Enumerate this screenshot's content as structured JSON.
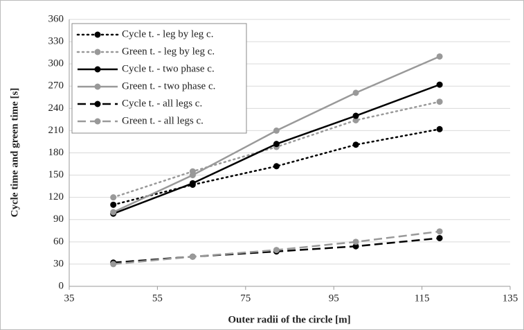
{
  "chart_data": {
    "type": "line",
    "xlabel": "Outer radii of the circle [m]",
    "ylabel": "Cycle time  and green time  [s]",
    "x": [
      45,
      63,
      82,
      100,
      119
    ],
    "xlim": [
      35,
      135
    ],
    "xticks": [
      35,
      55,
      75,
      95,
      115,
      135
    ],
    "ylim": [
      0,
      360
    ],
    "yticks": [
      0,
      30,
      60,
      90,
      120,
      150,
      180,
      210,
      240,
      270,
      300,
      330,
      360
    ],
    "grid": true,
    "legend": "upper left",
    "series": [
      {
        "name": "Cycle t. - leg by leg c.",
        "color": "#000000",
        "dash": "dotted",
        "values": [
          110,
          137,
          162,
          191,
          212
        ]
      },
      {
        "name": "Green t. - leg by leg c.",
        "color": "#999999",
        "dash": "dotted",
        "values": [
          120,
          155,
          188,
          224,
          249
        ]
      },
      {
        "name": "Cycle t. - two phase c.",
        "color": "#000000",
        "dash": "solid",
        "values": [
          98,
          139,
          192,
          230,
          272
        ]
      },
      {
        "name": "Green t. - two phase c.",
        "color": "#999999",
        "dash": "solid",
        "values": [
          100,
          150,
          210,
          261,
          310
        ]
      },
      {
        "name": "Cycle t. - all legs c.",
        "color": "#000000",
        "dash": "dashed",
        "values": [
          32,
          40,
          47,
          54,
          65
        ]
      },
      {
        "name": "Green t. - all legs c.",
        "color": "#999999",
        "dash": "dashed",
        "values": [
          30,
          40,
          49,
          60,
          74
        ]
      }
    ]
  }
}
